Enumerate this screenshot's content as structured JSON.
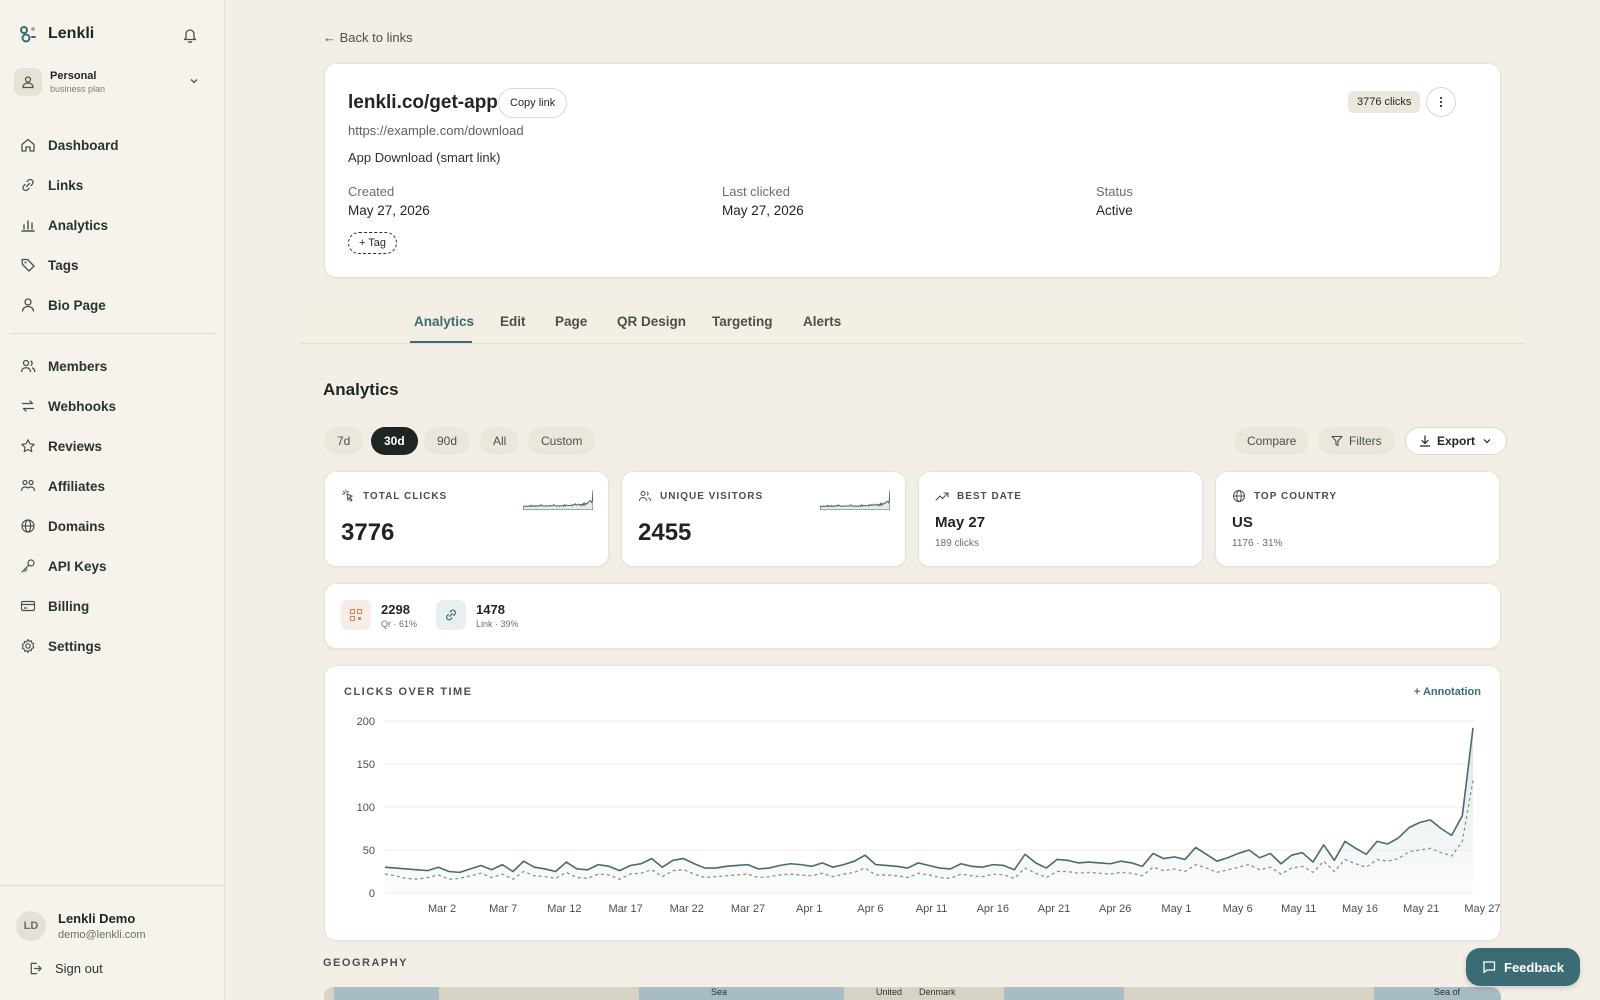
{
  "sidebar": {
    "brand": "Lenkli",
    "workspace": {
      "name": "Personal",
      "plan": "business plan"
    },
    "nav": [
      {
        "label": "Dashboard",
        "icon": "home-icon"
      },
      {
        "label": "Links",
        "icon": "link-icon"
      },
      {
        "label": "Analytics",
        "icon": "bar-chart-icon"
      },
      {
        "label": "Tags",
        "icon": "tag-icon"
      },
      {
        "label": "Bio Page",
        "icon": "user-icon"
      }
    ],
    "nav2": [
      {
        "label": "Members",
        "icon": "users-icon"
      },
      {
        "label": "Webhooks",
        "icon": "arrows-icon"
      },
      {
        "label": "Reviews",
        "icon": "star-icon"
      },
      {
        "label": "Affiliates",
        "icon": "handshake-icon"
      },
      {
        "label": "Domains",
        "icon": "globe-icon"
      },
      {
        "label": "API Keys",
        "icon": "key-icon"
      },
      {
        "label": "Billing",
        "icon": "card-icon"
      },
      {
        "label": "Settings",
        "icon": "gear-icon"
      }
    ],
    "user": {
      "initials": "LD",
      "name": "Lenkli Demo",
      "email": "demo@lenkli.com"
    },
    "sign_out": "Sign out"
  },
  "header": {
    "back": "← Back to links"
  },
  "link": {
    "short": "lenkli.co/get-app",
    "copy_label": "Copy link",
    "clicks_badge": "3776 clicks",
    "destination": "https://example.com/download",
    "description": "App Download (smart link)",
    "created_label": "Created",
    "created_value": "May 27, 2026",
    "last_clicked_label": "Last clicked",
    "last_clicked_value": "May 27, 2026",
    "status_label": "Status",
    "status_value": "Active",
    "tag_label": "+ Tag"
  },
  "tabs": [
    "Analytics",
    "Edit",
    "Page",
    "QR Design",
    "Targeting",
    "Alerts"
  ],
  "analytics": {
    "title": "Analytics",
    "ranges": [
      "7d",
      "30d",
      "90d",
      "All",
      "Custom"
    ],
    "active_range": "30d",
    "compare": "Compare",
    "filters": "Filters",
    "export": "Export",
    "stats": {
      "total_clicks": {
        "label": "TOTAL CLICKS",
        "value": "3776"
      },
      "unique_visitors": {
        "label": "UNIQUE VISITORS",
        "value": "2455"
      },
      "best_date": {
        "label": "BEST DATE",
        "value": "May 27",
        "sub": "189 clicks"
      },
      "top_country": {
        "label": "TOP COUNTRY",
        "value": "US",
        "sub": "1176 · 31%"
      }
    },
    "split": [
      {
        "value": "2298",
        "sub": "Qr · 61%"
      },
      {
        "value": "1478",
        "sub": "Link · 39%"
      }
    ],
    "chart_title": "CLICKS OVER TIME",
    "annotation": "+ Annotation",
    "geography": "GEOGRAPHY"
  },
  "map_labels": [
    "Sea",
    "United",
    "Denmark",
    "Sea of"
  ],
  "feedback": "Feedback",
  "colors": {
    "accent": "#3c6c73",
    "line_dark": "#4a6b6e",
    "line_dashed": "#7f9496"
  },
  "chart_data": {
    "type": "line",
    "title": "CLICKS OVER TIME",
    "ylim": [
      0,
      200
    ],
    "yticks": [
      0,
      50,
      100,
      150,
      200
    ],
    "xtick_labels": [
      "Mar 2",
      "Mar 7",
      "Mar 12",
      "Mar 17",
      "Mar 22",
      "Mar 27",
      "Apr 1",
      "Apr 6",
      "Apr 11",
      "Apr 16",
      "Apr 21",
      "Apr 26",
      "May 1",
      "May 6",
      "May 11",
      "May 16",
      "May 21",
      "May 27"
    ],
    "series": [
      {
        "style": "solid",
        "values": [
          30,
          29,
          28,
          27,
          26,
          30,
          25,
          24,
          28,
          32,
          27,
          33,
          25,
          37,
          30,
          28,
          25,
          36,
          28,
          27,
          33,
          31,
          26,
          32,
          34,
          40,
          30,
          38,
          40,
          34,
          29,
          29,
          31,
          32,
          33,
          28,
          29,
          32,
          34,
          33,
          31,
          35,
          30,
          33,
          37,
          44,
          33,
          32,
          31,
          29,
          35,
          32,
          29,
          28,
          34,
          31,
          30,
          33,
          32,
          27,
          45,
          35,
          29,
          39,
          38,
          35,
          36,
          35,
          34,
          37,
          35,
          31,
          46,
          40,
          42,
          39,
          53,
          45,
          37,
          41,
          46,
          50,
          41,
          46,
          34,
          44,
          47,
          36,
          56,
          38,
          60,
          52,
          45,
          60,
          57,
          64,
          76,
          82,
          85,
          75,
          67,
          90,
          192
        ]
      },
      {
        "style": "dashed",
        "values": [
          22,
          20,
          17,
          16,
          18,
          21,
          16,
          17,
          20,
          23,
          18,
          22,
          16,
          25,
          20,
          19,
          17,
          24,
          18,
          17,
          22,
          21,
          16,
          22,
          23,
          27,
          19,
          26,
          27,
          22,
          18,
          19,
          20,
          21,
          22,
          18,
          19,
          21,
          22,
          21,
          20,
          23,
          19,
          22,
          24,
          29,
          21,
          21,
          20,
          18,
          23,
          21,
          18,
          17,
          22,
          20,
          19,
          22,
          21,
          17,
          29,
          23,
          18,
          25,
          25,
          23,
          24,
          23,
          22,
          24,
          23,
          20,
          30,
          26,
          28,
          25,
          33,
          29,
          24,
          27,
          30,
          33,
          27,
          30,
          22,
          29,
          31,
          24,
          37,
          25,
          39,
          34,
          30,
          39,
          37,
          40,
          48,
          50,
          52,
          47,
          43,
          60,
          131
        ]
      }
    ]
  }
}
